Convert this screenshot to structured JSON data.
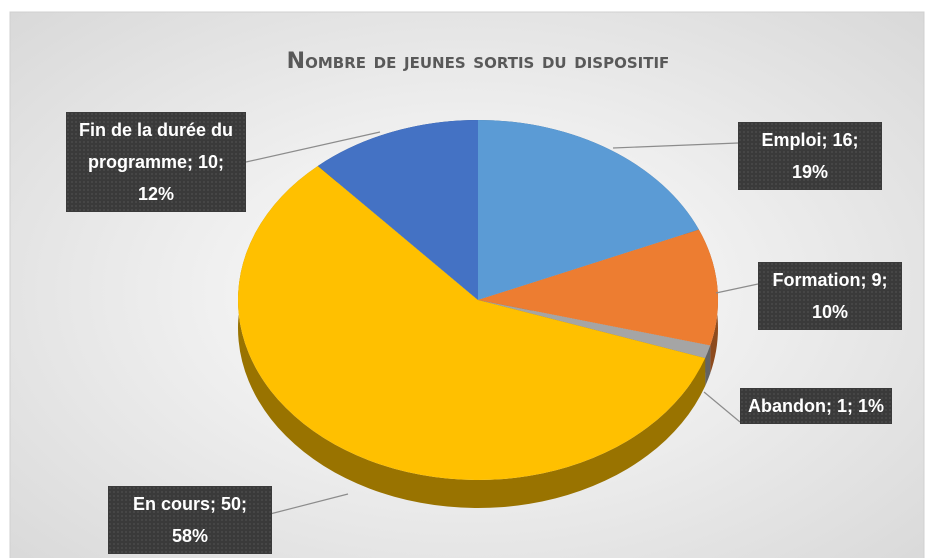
{
  "chart_data": {
    "type": "pie",
    "title": "Nombre de jeunes sortis du dispositif",
    "values": [
      16,
      9,
      1,
      50,
      10
    ],
    "value_labels": [
      "Emploi; 16; 19%",
      "Formation; 9; 10%",
      "Abandon; 1; 1%",
      "En cours; 50; 58%",
      "Fin de la durée du programme; 10; 12%"
    ],
    "colors": [
      "#5b9bd5",
      "#ed7d31",
      "#a5a5a5",
      "#ffc000",
      "#4472c4"
    ]
  }
}
